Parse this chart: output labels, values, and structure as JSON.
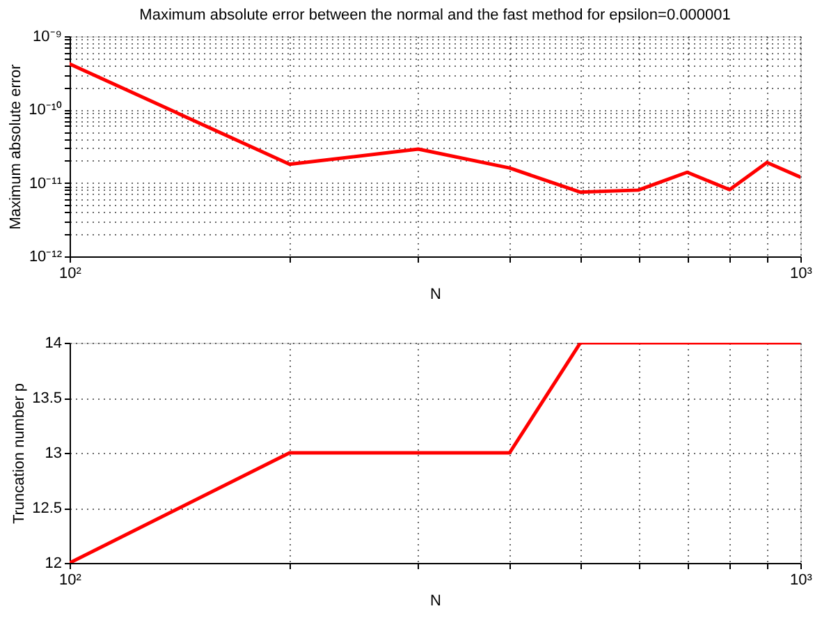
{
  "chart_data": [
    {
      "type": "line",
      "title": "Maximum absolute error between the normal and the fast method for epsilon=0.000001",
      "xlabel": "N",
      "ylabel": "Maximum absolute error",
      "log": "xy",
      "grid": true,
      "marker": "none",
      "line_style": "solid",
      "x": [
        100,
        200,
        300,
        400,
        500,
        600,
        700,
        800,
        900,
        1000
      ],
      "series": [
        {
          "color": "#ff0000",
          "values": [
            4.2e-10,
            1.8e-11,
            2.9e-11,
            1.6e-11,
            7.5e-12,
            8e-12,
            1.4e-11,
            8.1e-12,
            1.9e-11,
            1.2e-11
          ]
        }
      ],
      "xlim": [
        100,
        1000
      ],
      "xticks": [
        {
          "value": 100,
          "label": "10²"
        },
        {
          "value": 200,
          "label": null
        },
        {
          "value": 300,
          "label": null
        },
        {
          "value": 400,
          "label": null
        },
        {
          "value": 500,
          "label": null
        },
        {
          "value": 600,
          "label": null
        },
        {
          "value": 700,
          "label": null
        },
        {
          "value": 800,
          "label": null
        },
        {
          "value": 900,
          "label": null
        },
        {
          "value": 1000,
          "label": "10³"
        }
      ],
      "ylim": [
        1e-12,
        1e-09
      ],
      "yticks": [
        {
          "value": 1e-12,
          "label": "10⁻¹²"
        },
        {
          "value": 2e-12,
          "label": null
        },
        {
          "value": 3e-12,
          "label": null
        },
        {
          "value": 4e-12,
          "label": null
        },
        {
          "value": 5e-12,
          "label": null
        },
        {
          "value": 6e-12,
          "label": null
        },
        {
          "value": 7e-12,
          "label": null
        },
        {
          "value": 8e-12,
          "label": null
        },
        {
          "value": 9e-12,
          "label": null
        },
        {
          "value": 1e-11,
          "label": "10⁻¹¹"
        },
        {
          "value": 2e-11,
          "label": null
        },
        {
          "value": 3e-11,
          "label": null
        },
        {
          "value": 4e-11,
          "label": null
        },
        {
          "value": 5e-11,
          "label": null
        },
        {
          "value": 6e-11,
          "label": null
        },
        {
          "value": 7e-11,
          "label": null
        },
        {
          "value": 8e-11,
          "label": null
        },
        {
          "value": 9e-11,
          "label": null
        },
        {
          "value": 1e-10,
          "label": "10⁻¹⁰"
        },
        {
          "value": 2e-10,
          "label": null
        },
        {
          "value": 3e-10,
          "label": null
        },
        {
          "value": 4e-10,
          "label": null
        },
        {
          "value": 5e-10,
          "label": null
        },
        {
          "value": 6e-10,
          "label": null
        },
        {
          "value": 7e-10,
          "label": null
        },
        {
          "value": 8e-10,
          "label": null
        },
        {
          "value": 9e-10,
          "label": null
        },
        {
          "value": 1e-09,
          "label": "10⁻⁹"
        }
      ]
    },
    {
      "type": "line",
      "xlabel": "N",
      "ylabel": "Truncation number p",
      "log": "x",
      "grid": true,
      "marker": "none",
      "line_style": "solid",
      "x": [
        100,
        200,
        300,
        400,
        500,
        600,
        700,
        800,
        900,
        1000
      ],
      "series": [
        {
          "color": "#ff0000",
          "values": [
            12,
            13,
            13,
            13,
            14,
            14,
            14,
            14,
            14,
            14
          ]
        }
      ],
      "xlim": [
        100,
        1000
      ],
      "xticks": [
        {
          "value": 100,
          "label": "10²"
        },
        {
          "value": 200,
          "label": null
        },
        {
          "value": 300,
          "label": null
        },
        {
          "value": 400,
          "label": null
        },
        {
          "value": 500,
          "label": null
        },
        {
          "value": 600,
          "label": null
        },
        {
          "value": 700,
          "label": null
        },
        {
          "value": 800,
          "label": null
        },
        {
          "value": 900,
          "label": null
        },
        {
          "value": 1000,
          "label": "10³"
        }
      ],
      "ylim": [
        12,
        14
      ],
      "yticks": [
        12,
        12.5,
        13,
        13.5,
        14
      ]
    }
  ]
}
